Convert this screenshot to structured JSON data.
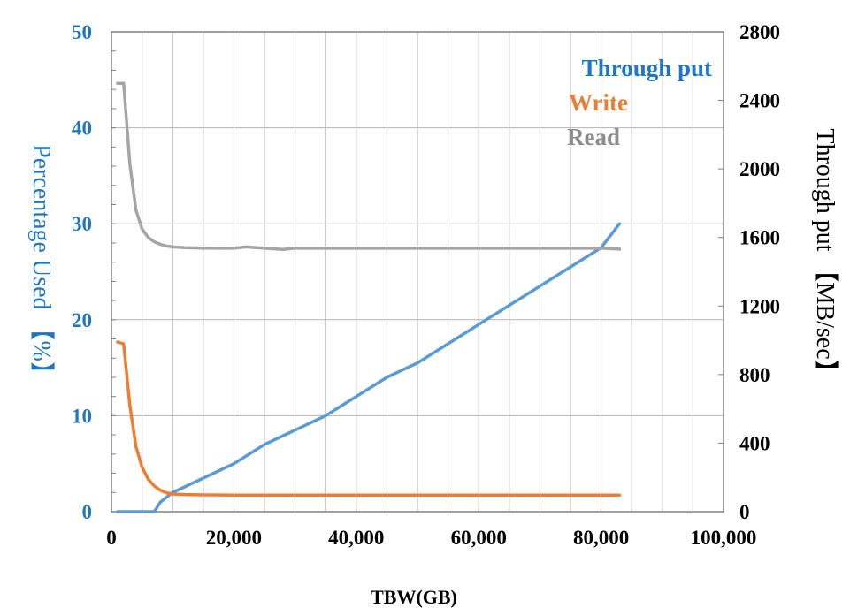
{
  "chart_data": {
    "type": "line",
    "xlabel": "TBW(GB)",
    "ylabel_left": "Percentage Used 【%】",
    "ylabel_right": "Through put 【MB/sec】",
    "xlim": [
      0,
      100000
    ],
    "ylim_left": [
      0,
      50
    ],
    "ylim_right": [
      0,
      2800
    ],
    "x_ticks": [
      0,
      20000,
      40000,
      60000,
      80000,
      100000
    ],
    "x_tick_labels": [
      "0",
      "20,000",
      "40,000",
      "60,000",
      "80,000",
      "100,000"
    ],
    "y_left_ticks": [
      0,
      10,
      20,
      30,
      40,
      50
    ],
    "y_left_tick_labels": [
      "0",
      "10",
      "20",
      "30",
      "40",
      "50"
    ],
    "y_right_ticks": [
      0,
      400,
      800,
      1200,
      1600,
      2000,
      2400,
      2800
    ],
    "y_right_tick_labels": [
      "0",
      "400",
      "800",
      "1200",
      "1600",
      "2000",
      "2400",
      "2800"
    ],
    "grid": true,
    "legend_position": "top-right",
    "legend": [
      {
        "label": "Through put",
        "color": "#1f77c4"
      },
      {
        "label": "Write",
        "color": "#ed7d31"
      },
      {
        "label": "Read",
        "color": "#8c8c8c"
      }
    ],
    "series": [
      {
        "axis": "left",
        "color": "#5b9bd5",
        "x": [
          1000,
          7000,
          8000,
          10000,
          15000,
          20000,
          25000,
          30000,
          35000,
          40000,
          45000,
          50000,
          55000,
          60000,
          65000,
          70000,
          75000,
          80000,
          83000
        ],
        "y": [
          0,
          0,
          1,
          2,
          3.5,
          5,
          7,
          8.5,
          10,
          12,
          14,
          15.5,
          17.5,
          19.5,
          21.5,
          23.5,
          25.5,
          27.5,
          30
        ]
      },
      {
        "axis": "right",
        "color": "#ed7d31",
        "x": [
          1000,
          2000,
          3000,
          4000,
          5000,
          6000,
          7000,
          8000,
          9000,
          10000,
          12000,
          15000,
          20000,
          40000,
          60000,
          83000
        ],
        "y": [
          990,
          980,
          620,
          380,
          260,
          190,
          150,
          125,
          110,
          103,
          100,
          98,
          97,
          97,
          97,
          97
        ]
      },
      {
        "axis": "right",
        "color": "#a5a5a5",
        "x": [
          1000,
          2000,
          3000,
          4000,
          5000,
          6000,
          7000,
          8000,
          9000,
          10000,
          12000,
          15000,
          20000,
          22000,
          25000,
          28000,
          30000,
          40000,
          50000,
          60000,
          70000,
          80000,
          83000
        ],
        "y": [
          2500,
          2500,
          2030,
          1760,
          1650,
          1600,
          1575,
          1560,
          1550,
          1545,
          1540,
          1538,
          1537,
          1545,
          1537,
          1530,
          1537,
          1537,
          1537,
          1537,
          1537,
          1537,
          1532
        ]
      }
    ]
  }
}
